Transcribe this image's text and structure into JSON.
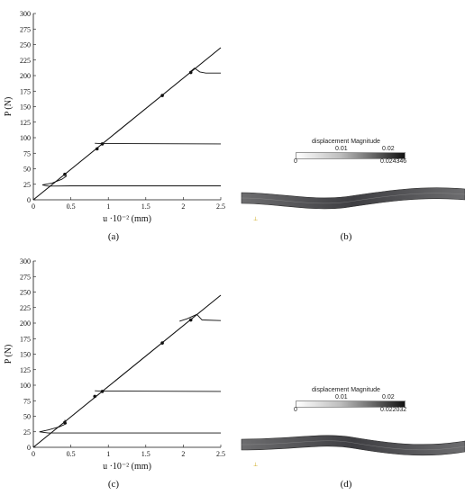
{
  "chart_data": [
    {
      "type": "line",
      "panel": "(a)",
      "xlabel": "u ·10⁻² (mm)",
      "ylabel": "P (N)",
      "xlim": [
        0,
        2.5
      ],
      "ylim": [
        0,
        300
      ],
      "xticks": [
        "0",
        "0.5",
        "1",
        "1.5",
        "2",
        "2.5"
      ],
      "yticks": [
        "0",
        "25",
        "50",
        "75",
        "100",
        "125",
        "150",
        "175",
        "200",
        "225",
        "250",
        "275",
        "300"
      ],
      "grid": false,
      "series": [
        {
          "x": [
            0,
            2.5
          ],
          "y": [
            0,
            245
          ]
        },
        {
          "x": [
            0.42,
            0.44,
            0.38,
            0.25,
            0.12,
            0.2,
            0.5,
            1.0,
            2.5
          ],
          "y": [
            42,
            38,
            33,
            27,
            24,
            22,
            22.5,
            22.5,
            22.5
          ]
        },
        {
          "x": [
            0.82,
            0.9,
            1.2,
            2.5
          ],
          "y": [
            91,
            90.5,
            90.5,
            90
          ]
        },
        {
          "x": [
            2.08,
            2.15,
            2.22,
            2.3,
            2.5
          ],
          "y": [
            205,
            212,
            206,
            204,
            204
          ]
        }
      ],
      "markers": {
        "x": [
          0.42,
          0.85,
          0.92,
          1.72,
          2.1
        ],
        "y": [
          41,
          82,
          90,
          168,
          205
        ]
      }
    },
    {
      "type": "line",
      "panel": "(c)",
      "xlabel": "u ·10⁻² (mm)",
      "ylabel": "P (N)",
      "xlim": [
        0,
        2.5
      ],
      "ylim": [
        0,
        300
      ],
      "xticks": [
        "0",
        "0.5",
        "1",
        "1.5",
        "2",
        "2.5"
      ],
      "yticks": [
        "0",
        "25",
        "50",
        "75",
        "100",
        "125",
        "150",
        "175",
        "200",
        "225",
        "250",
        "275",
        "300"
      ],
      "grid": false,
      "series": [
        {
          "x": [
            0,
            2.5
          ],
          "y": [
            0,
            245
          ]
        },
        {
          "x": [
            0.42,
            0.44,
            0.35,
            0.2,
            0.08,
            0.2,
            0.5,
            1.0,
            2.5
          ],
          "y": [
            44,
            38,
            33,
            28,
            25,
            23,
            23,
            23,
            23
          ]
        },
        {
          "x": [
            0.82,
            0.9,
            1.2,
            2.5
          ],
          "y": [
            91,
            90.5,
            90.5,
            90
          ]
        },
        {
          "x": [
            1.95,
            2.05,
            2.18,
            2.25,
            2.5
          ],
          "y": [
            203,
            207,
            214,
            205,
            204
          ]
        }
      ],
      "markers": {
        "x": [
          0.42,
          0.82,
          0.92,
          1.72,
          2.1
        ],
        "y": [
          40,
          82,
          90,
          168,
          205
        ]
      }
    }
  ],
  "legends": [
    {
      "title": "displacement Magnitude",
      "ticks": [
        "0.01",
        "0.02"
      ],
      "min": "0",
      "max": "0.024346"
    },
    {
      "title": "displacement Magnitude",
      "ticks": [
        "0.01",
        "0.02"
      ],
      "min": "0",
      "max": "0.022032"
    }
  ],
  "panel_labels": [
    "(a)",
    "(b)",
    "(c)",
    "(d)"
  ]
}
